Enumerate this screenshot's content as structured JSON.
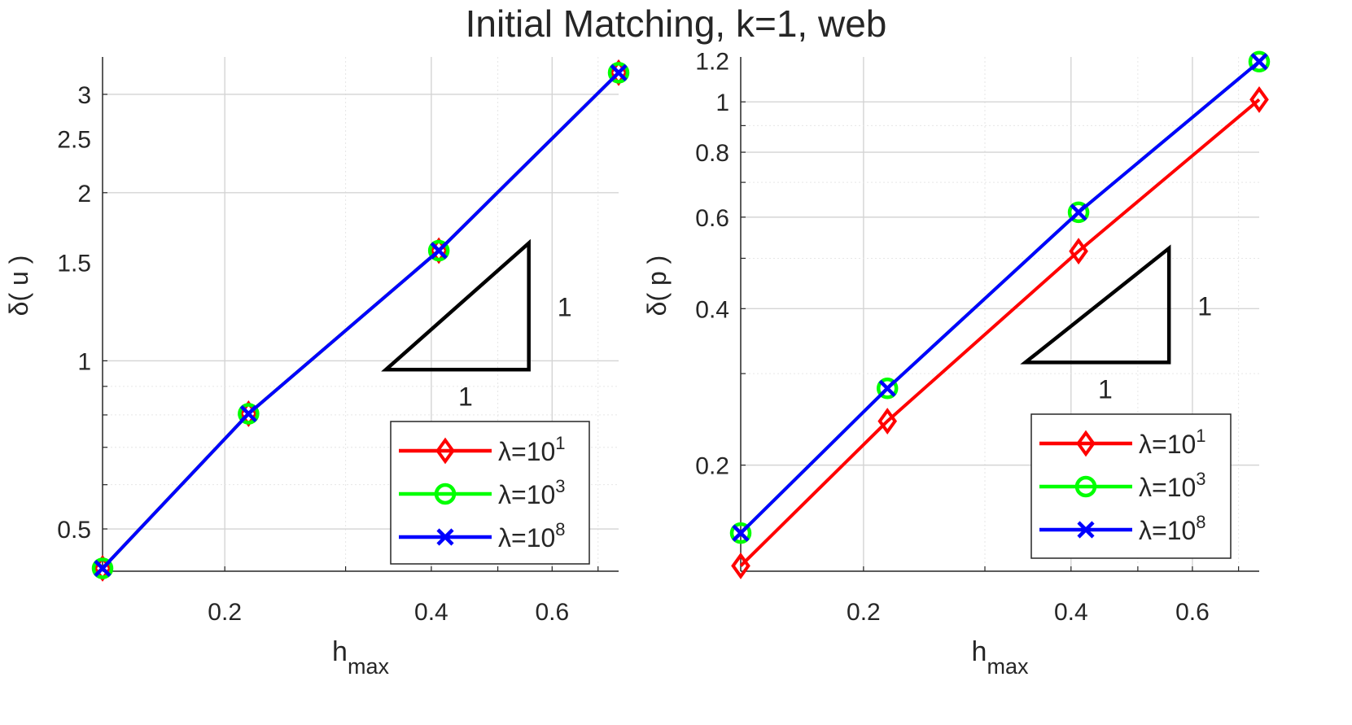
{
  "suptitle": "Initial Matching, k=1, web",
  "colors": {
    "lambda1": "#ff0000",
    "lambda3": "#00ff00",
    "lambda8": "#0000ff",
    "axis": "#262626",
    "grid": "#dcdcdc",
    "triangle": "#000000"
  },
  "chart_data": [
    {
      "type": "line",
      "scale": "loglog",
      "xlabel": "h",
      "xlabel_sub": "max",
      "ylabel": "δ( u )",
      "xlim": [
        0.1327,
        0.75
      ],
      "ylim": [
        0.42,
        3.5
      ],
      "xticks": [
        0.2,
        0.4,
        0.6
      ],
      "xtick_labels": [
        "0.2",
        "0.4",
        "0.6"
      ],
      "yticks": [
        0.5,
        1,
        1.5,
        2,
        2.5,
        3
      ],
      "ytick_labels": [
        "0.5",
        "1",
        "1.5",
        "2",
        "2.5",
        "3"
      ],
      "grid": true,
      "legend_position": "bottom-right",
      "slope_triangle": {
        "x_label": "1",
        "y_label": "1"
      },
      "x": [
        0.1327,
        0.2166,
        0.4102,
        0.75
      ],
      "series": [
        {
          "name": "λ=10",
          "exponent": "1",
          "marker": "diamond",
          "color": "#ff0000",
          "values": [
            0.425,
            0.804,
            1.575,
            3.28
          ]
        },
        {
          "name": "λ=10",
          "exponent": "3",
          "marker": "circle",
          "color": "#00ff00",
          "values": [
            0.425,
            0.804,
            1.575,
            3.28
          ]
        },
        {
          "name": "λ=10",
          "exponent": "8",
          "marker": "x",
          "color": "#0000ff",
          "values": [
            0.425,
            0.804,
            1.575,
            3.28
          ]
        }
      ]
    },
    {
      "type": "line",
      "scale": "loglog",
      "xlabel": "h",
      "xlabel_sub": "max",
      "ylabel": "δ( p )",
      "xlim": [
        0.1327,
        0.75
      ],
      "ylim": [
        0.125,
        1.22
      ],
      "xticks": [
        0.2,
        0.4,
        0.6
      ],
      "xtick_labels": [
        "0.2",
        "0.4",
        "0.6"
      ],
      "yticks": [
        0.2,
        0.4,
        0.6,
        0.8,
        1,
        1.2
      ],
      "ytick_labels": [
        "0.2",
        "0.4",
        "0.6",
        "0.8",
        "1",
        "1.2"
      ],
      "grid": true,
      "legend_position": "bottom-right",
      "slope_triangle": {
        "x_label": "1",
        "y_label": "1"
      },
      "x": [
        0.1327,
        0.2166,
        0.4102,
        0.75
      ],
      "series": [
        {
          "name": "λ=10",
          "exponent": "1",
          "marker": "diamond",
          "color": "#ff0000",
          "values": [
            0.128,
            0.243,
            0.516,
            1.01
          ]
        },
        {
          "name": "λ=10",
          "exponent": "3",
          "marker": "circle",
          "color": "#00ff00",
          "values": [
            0.148,
            0.281,
            0.613,
            1.195
          ]
        },
        {
          "name": "λ=10",
          "exponent": "8",
          "marker": "x",
          "color": "#0000ff",
          "values": [
            0.148,
            0.281,
            0.613,
            1.195
          ]
        }
      ]
    }
  ]
}
